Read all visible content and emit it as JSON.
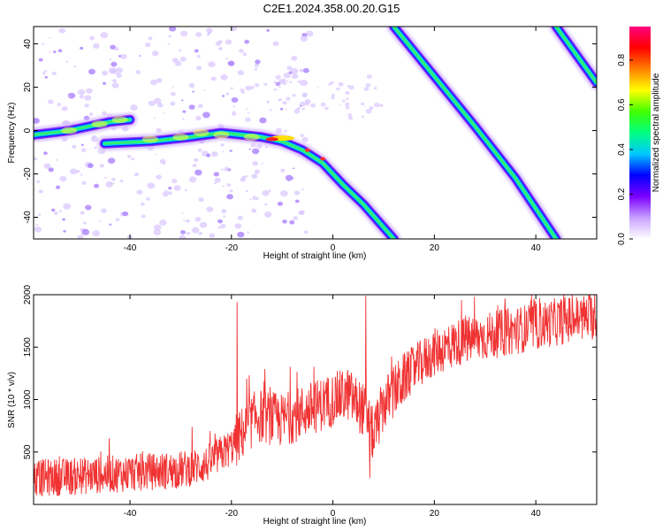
{
  "title": "C2E1.2024.358.00.20.G15",
  "chart_data": [
    {
      "type": "heatmap",
      "xlabel": "Height of straight line (km)",
      "ylabel": "Frequency (Hz)",
      "xlim": [
        -59,
        52
      ],
      "ylim": [
        -50,
        48
      ],
      "x_ticks": [
        "-40",
        "-20",
        "0",
        "20",
        "40"
      ],
      "y_ticks": [
        "-40",
        "-20",
        "0",
        "20",
        "40"
      ],
      "colorbar": {
        "label": "Normalized spectral amplitude",
        "range": [
          0,
          0.95
        ],
        "ticks": [
          "0.0",
          "0.2",
          "0.4",
          "0.6",
          "0.8"
        ],
        "colors": [
          "#ffffff",
          "#c8a0ff",
          "#7a00ff",
          "#0000ff",
          "#00c8ff",
          "#00ff80",
          "#40ff00",
          "#ffff00",
          "#ff8000",
          "#ff0000",
          "#ff0080"
        ]
      },
      "tracks": [
        {
          "x": [
            -59,
            -52,
            -48,
            -44,
            -40
          ],
          "y": [
            -2,
            0,
            2,
            4,
            5
          ]
        },
        {
          "x": [
            -45,
            -36,
            -28,
            -22,
            -18,
            -14,
            -10,
            -6,
            -2,
            2,
            6,
            12
          ],
          "y": [
            -6,
            -5,
            -3,
            -1,
            -2,
            -3,
            -5,
            -9,
            -15,
            -25,
            -34,
            -50
          ]
        },
        {
          "x": [
            12,
            20,
            28,
            36,
            44
          ],
          "y": [
            48,
            25,
            2,
            -22,
            -50
          ]
        },
        {
          "x": [
            44,
            48,
            52
          ],
          "y": [
            48,
            35,
            22
          ]
        }
      ],
      "peak": {
        "x": -12,
        "y": -4
      }
    },
    {
      "type": "line",
      "xlabel": "Height of straight line (km)",
      "ylabel": "SNR (10 * v/v)",
      "xlim": [
        -59,
        52
      ],
      "ylim": [
        0,
        2000
      ],
      "x_ticks": [
        "-40",
        "-20",
        "0",
        "20",
        "40"
      ],
      "y_ticks": [
        "500",
        "1000",
        "1500",
        "2000"
      ],
      "color": "#f03232",
      "trend": {
        "x": [
          -59,
          -50,
          -40,
          -30,
          -25,
          -20,
          -15,
          -10,
          -5,
          0,
          3,
          6,
          8,
          10,
          15,
          20,
          25,
          30,
          35,
          40,
          45,
          52
        ],
        "y": [
          250,
          270,
          300,
          330,
          380,
          550,
          850,
          800,
          900,
          1000,
          1050,
          900,
          650,
          950,
          1250,
          1450,
          1550,
          1600,
          1650,
          1700,
          1750,
          1800
        ]
      },
      "spikes": [
        {
          "x": -18.9,
          "y": 1930
        },
        {
          "x": 6.5,
          "y": 1990
        },
        {
          "x": 7.3,
          "y": 250
        },
        {
          "x": 45.5,
          "y": 2000
        }
      ]
    }
  ]
}
